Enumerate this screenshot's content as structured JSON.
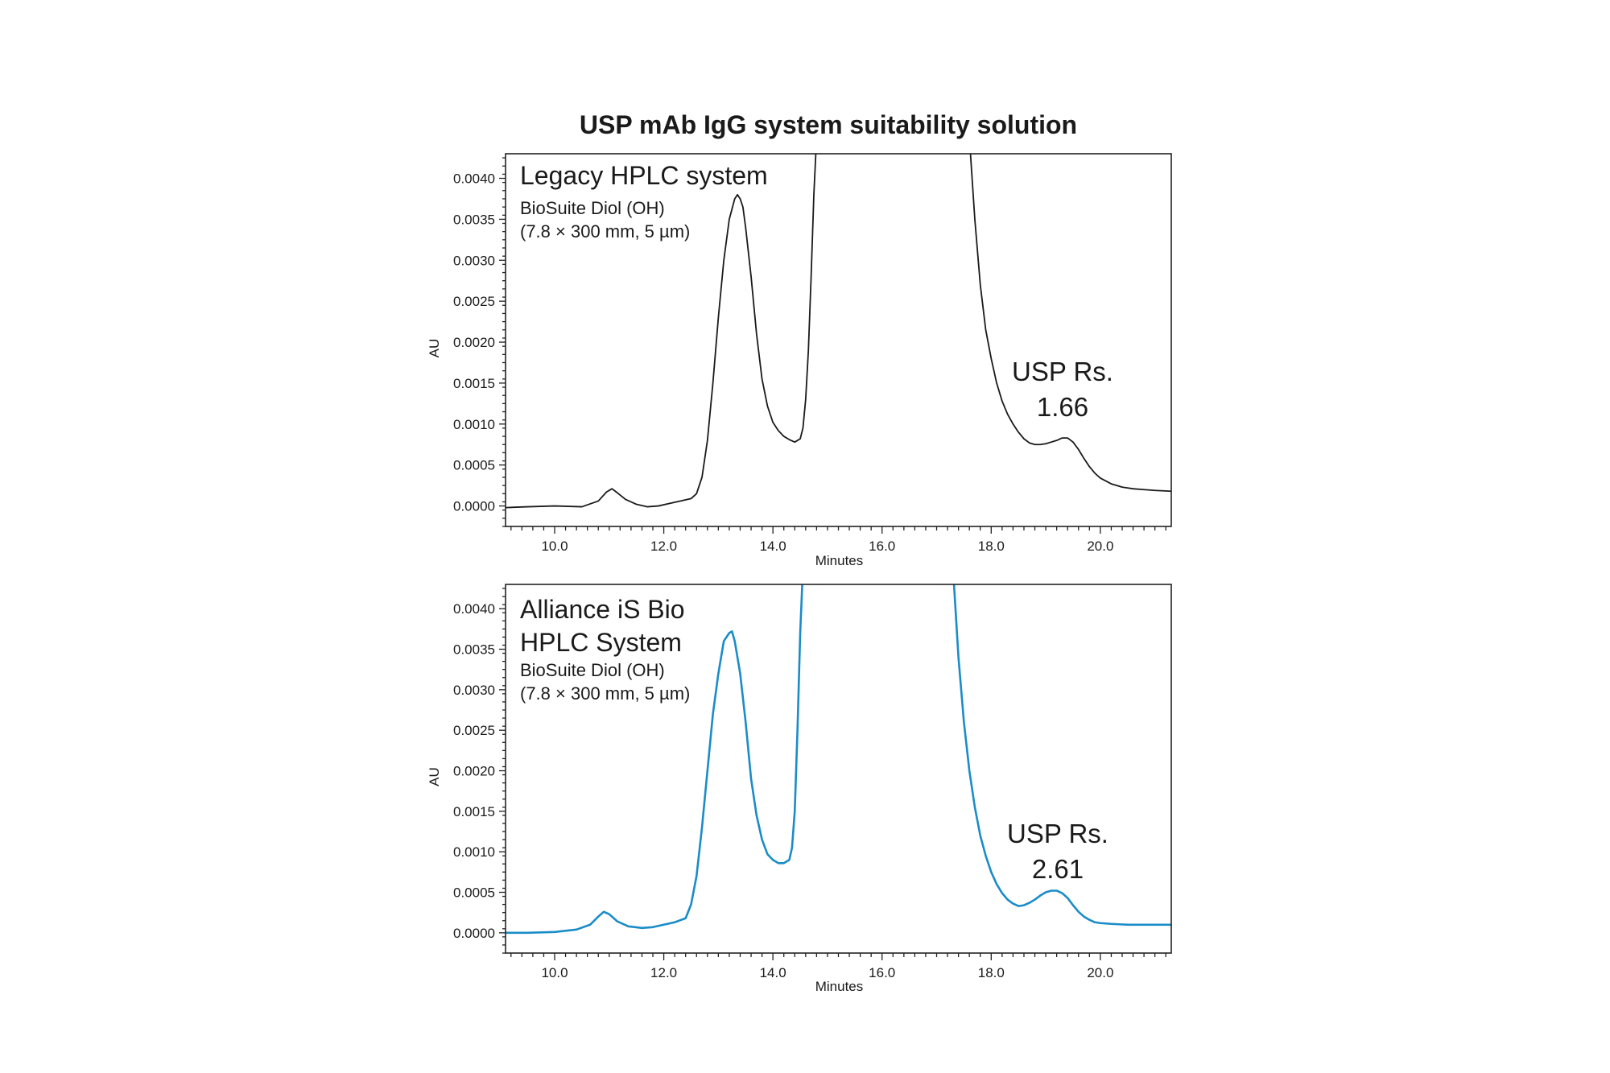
{
  "figure": {
    "title": "USP mAb IgG system suitability solution"
  },
  "chart_data": [
    {
      "type": "line",
      "panel_title": "Legacy HPLC system",
      "column_lines": [
        "BioSuite Diol (OH)",
        "(7.8 × 300 mm, 5 µm)"
      ],
      "xlabel": "Minutes",
      "ylabel": "AU",
      "xlim": [
        9.1,
        21.3
      ],
      "ylim": [
        -0.00025,
        0.0043
      ],
      "x_ticks": [
        10.0,
        12.0,
        14.0,
        16.0,
        18.0,
        20.0
      ],
      "x_tick_labels": [
        "10.0",
        "12.0",
        "14.0",
        "16.0",
        "18.0",
        "20.0"
      ],
      "y_ticks": [
        0.0,
        0.0005,
        0.001,
        0.0015,
        0.002,
        0.0025,
        0.003,
        0.0035,
        0.004
      ],
      "y_tick_labels": [
        "0.0000",
        "0.0005",
        "0.0010",
        "0.0015",
        "0.0020",
        "0.0025",
        "0.0030",
        "0.0035",
        "0.0040"
      ],
      "annotation_lines": [
        "USP Rs.",
        "1.66"
      ],
      "color": "#1a1a1a",
      "series": [
        {
          "x": [
            9.1,
            9.5,
            10.0,
            10.5,
            10.8,
            10.95,
            11.05,
            11.15,
            11.3,
            11.5,
            11.7,
            11.9,
            12.1,
            12.3,
            12.5,
            12.6,
            12.7,
            12.8,
            12.9,
            13.0,
            13.1,
            13.2,
            13.3,
            13.35,
            13.4,
            13.45,
            13.5,
            13.6,
            13.7,
            13.8,
            13.9,
            14.0,
            14.1,
            14.2,
            14.3,
            14.4,
            14.5,
            14.55,
            14.6,
            14.65,
            14.7,
            14.75,
            14.8,
            17.6,
            17.7,
            17.8,
            17.9,
            18.0,
            18.1,
            18.2,
            18.3,
            18.4,
            18.5,
            18.6,
            18.7,
            18.8,
            18.9,
            19.0,
            19.1,
            19.2,
            19.3,
            19.4,
            19.5,
            19.6,
            19.7,
            19.8,
            19.9,
            20.0,
            20.2,
            20.4,
            20.6,
            20.8,
            21.0,
            21.3
          ],
          "y": [
            -2e-05,
            -1e-05,
            0.0,
            -1e-05,
            6e-05,
            0.00017,
            0.00021,
            0.00016,
            8e-05,
            2e-05,
            -1e-05,
            0.0,
            3e-05,
            6e-05,
            9e-05,
            0.00015,
            0.00035,
            0.0008,
            0.0015,
            0.0023,
            0.003,
            0.0035,
            0.00375,
            0.0038,
            0.00375,
            0.00365,
            0.0034,
            0.0028,
            0.0021,
            0.00155,
            0.00122,
            0.00102,
            0.00092,
            0.00085,
            0.00081,
            0.00078,
            0.00082,
            0.00095,
            0.0013,
            0.0019,
            0.0028,
            0.0038,
            0.0045,
            0.0045,
            0.0035,
            0.0027,
            0.00215,
            0.0018,
            0.0015,
            0.00128,
            0.00112,
            0.001,
            0.0009,
            0.00082,
            0.00077,
            0.00075,
            0.00075,
            0.00076,
            0.00078,
            0.0008,
            0.00083,
            0.00083,
            0.00078,
            0.00069,
            0.00058,
            0.00048,
            0.0004,
            0.00034,
            0.00027,
            0.00023,
            0.00021,
            0.0002,
            0.00019,
            0.00018
          ]
        }
      ]
    },
    {
      "type": "line",
      "panel_title_lines": [
        "Alliance iS Bio",
        "HPLC System"
      ],
      "column_lines": [
        "BioSuite Diol (OH)",
        "(7.8 × 300 mm, 5 µm)"
      ],
      "xlabel": "Minutes",
      "ylabel": "AU",
      "xlim": [
        9.1,
        21.3
      ],
      "ylim": [
        -0.00025,
        0.0043
      ],
      "x_ticks": [
        10.0,
        12.0,
        14.0,
        16.0,
        18.0,
        20.0
      ],
      "x_tick_labels": [
        "10.0",
        "12.0",
        "14.0",
        "16.0",
        "18.0",
        "20.0"
      ],
      "y_ticks": [
        0.0,
        0.0005,
        0.001,
        0.0015,
        0.002,
        0.0025,
        0.003,
        0.0035,
        0.004
      ],
      "y_tick_labels": [
        "0.0000",
        "0.0005",
        "0.0010",
        "0.0015",
        "0.0020",
        "0.0025",
        "0.0030",
        "0.0035",
        "0.0040"
      ],
      "annotation_lines": [
        "USP Rs.",
        "2.61"
      ],
      "color": "#1a8cc8",
      "series": [
        {
          "x": [
            9.1,
            9.5,
            10.0,
            10.4,
            10.65,
            10.8,
            10.9,
            11.0,
            11.15,
            11.35,
            11.6,
            11.8,
            12.0,
            12.2,
            12.4,
            12.5,
            12.6,
            12.7,
            12.8,
            12.9,
            13.0,
            13.1,
            13.2,
            13.25,
            13.3,
            13.4,
            13.5,
            13.6,
            13.7,
            13.8,
            13.9,
            14.0,
            14.1,
            14.2,
            14.3,
            14.35,
            14.4,
            14.45,
            14.5,
            14.55,
            17.3,
            17.4,
            17.5,
            17.6,
            17.7,
            17.8,
            17.9,
            18.0,
            18.1,
            18.2,
            18.3,
            18.4,
            18.5,
            18.6,
            18.7,
            18.8,
            18.9,
            19.0,
            19.1,
            19.2,
            19.3,
            19.4,
            19.5,
            19.6,
            19.7,
            19.8,
            19.9,
            20.0,
            20.2,
            20.5,
            20.8,
            21.3
          ],
          "y": [
            0.0,
            0.0,
            1e-05,
            4e-05,
            0.0001,
            0.0002,
            0.00026,
            0.00023,
            0.00014,
            8e-05,
            6e-05,
            7e-05,
            0.0001,
            0.00013,
            0.00018,
            0.00035,
            0.0007,
            0.0013,
            0.002,
            0.0027,
            0.0032,
            0.0036,
            0.0037,
            0.00372,
            0.0036,
            0.0032,
            0.0026,
            0.0019,
            0.00145,
            0.00115,
            0.00097,
            0.0009,
            0.00086,
            0.00086,
            0.0009,
            0.00105,
            0.0015,
            0.0025,
            0.0037,
            0.0045,
            0.0045,
            0.0034,
            0.0026,
            0.002,
            0.00155,
            0.0012,
            0.00095,
            0.00075,
            0.0006,
            0.00049,
            0.00041,
            0.00036,
            0.00033,
            0.00034,
            0.00037,
            0.00041,
            0.00046,
            0.0005,
            0.00052,
            0.00052,
            0.00049,
            0.00043,
            0.00034,
            0.00026,
            0.0002,
            0.00016,
            0.00013,
            0.00012,
            0.00011,
            0.0001,
            0.0001,
            0.0001
          ]
        }
      ]
    }
  ]
}
